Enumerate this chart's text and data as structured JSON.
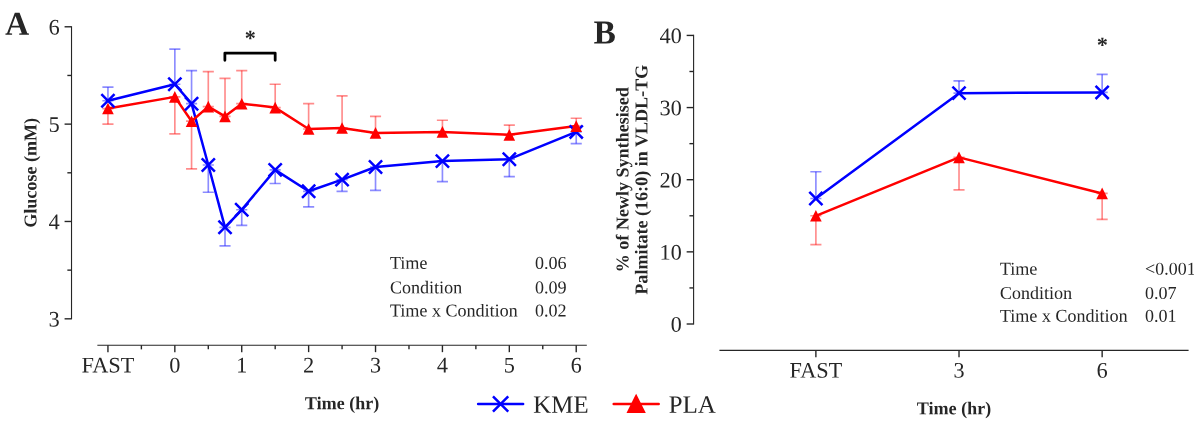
{
  "chart_data": [
    {
      "type": "line",
      "title": "A",
      "xlabel": "Time (hr)",
      "ylabel": "Glucose (mM)",
      "x": [
        -1,
        0,
        0.25,
        0.5,
        0.75,
        1,
        1.5,
        2,
        2.5,
        3,
        4,
        5,
        6
      ],
      "xlim": [
        -1.15,
        6.15
      ],
      "xticks": [
        {
          "value": -1,
          "label": "FAST"
        },
        0,
        1,
        2,
        3,
        4,
        5,
        6
      ],
      "ylim": [
        3,
        6
      ],
      "yticks": [
        3,
        4,
        5,
        6
      ],
      "legend": "bottom",
      "series": [
        {
          "name": "KME",
          "color": "#0000ff",
          "marker": "cross",
          "values": [
            5.24,
            5.41,
            5.21,
            4.58,
            3.94,
            4.12,
            4.53,
            4.31,
            4.43,
            4.56,
            4.62,
            4.64,
            4.92
          ],
          "errors": [
            [
              5.24,
              5.38
            ],
            [
              5.41,
              5.77
            ],
            [
              5.21,
              5.55
            ],
            [
              4.3,
              4.58
            ],
            [
              3.75,
              3.94
            ],
            [
              3.96,
              4.12
            ],
            [
              4.39,
              4.53
            ],
            [
              4.15,
              4.31
            ],
            [
              4.31,
              4.43
            ],
            [
              4.32,
              4.56
            ],
            [
              4.41,
              4.62
            ],
            [
              4.46,
              4.64
            ],
            [
              4.8,
              4.92
            ]
          ]
        },
        {
          "name": "PLA",
          "color": "#ff0000",
          "marker": "triangle",
          "values": [
            5.16,
            5.28,
            5.03,
            5.18,
            5.08,
            5.21,
            5.17,
            4.95,
            4.96,
            4.91,
            4.92,
            4.89,
            4.98
          ],
          "errors": [
            [
              5.0,
              5.16
            ],
            [
              4.9,
              5.28
            ],
            [
              4.54,
              5.03
            ],
            [
              5.18,
              5.54
            ],
            [
              5.08,
              5.47
            ],
            [
              5.21,
              5.55
            ],
            [
              5.17,
              5.41
            ],
            [
              4.95,
              5.21
            ],
            [
              4.96,
              5.29
            ],
            [
              4.91,
              5.08
            ],
            [
              4.92,
              5.04
            ],
            [
              4.89,
              4.99
            ],
            [
              4.98,
              5.06
            ]
          ]
        }
      ],
      "annotations": [
        "Time",
        "0.06",
        "Condition",
        "0.09",
        "Time x Condition",
        "0.02",
        "*"
      ]
    },
    {
      "type": "line",
      "title": "B",
      "xlabel": "Time (hr)",
      "ylabel": "% of Newly Synthesised\nPalmitate (16:0) in VLDL-TG",
      "categories": [
        "FAST",
        "3",
        "6"
      ],
      "ylim": [
        0,
        40
      ],
      "yticks": [
        0,
        10,
        20,
        30,
        40
      ],
      "series": [
        {
          "color": "#0000ff",
          "marker": "cross",
          "values": [
            17.4,
            32.0,
            32.1
          ],
          "errors": [
            [
              17.4,
              21.1
            ],
            [
              32.0,
              33.7
            ],
            [
              32.1,
              34.6
            ]
          ]
        },
        {
          "color": "#ff0000",
          "marker": "triangle",
          "values": [
            15.0,
            23.1,
            18.1
          ],
          "errors": [
            [
              11.0,
              15.0
            ],
            [
              18.6,
              23.1
            ],
            [
              14.5,
              18.1
            ]
          ]
        }
      ],
      "annotations": [
        "Time",
        "<0.001",
        "Condition",
        "0.07",
        "Time x Condition",
        "0.01",
        "*"
      ]
    }
  ]
}
